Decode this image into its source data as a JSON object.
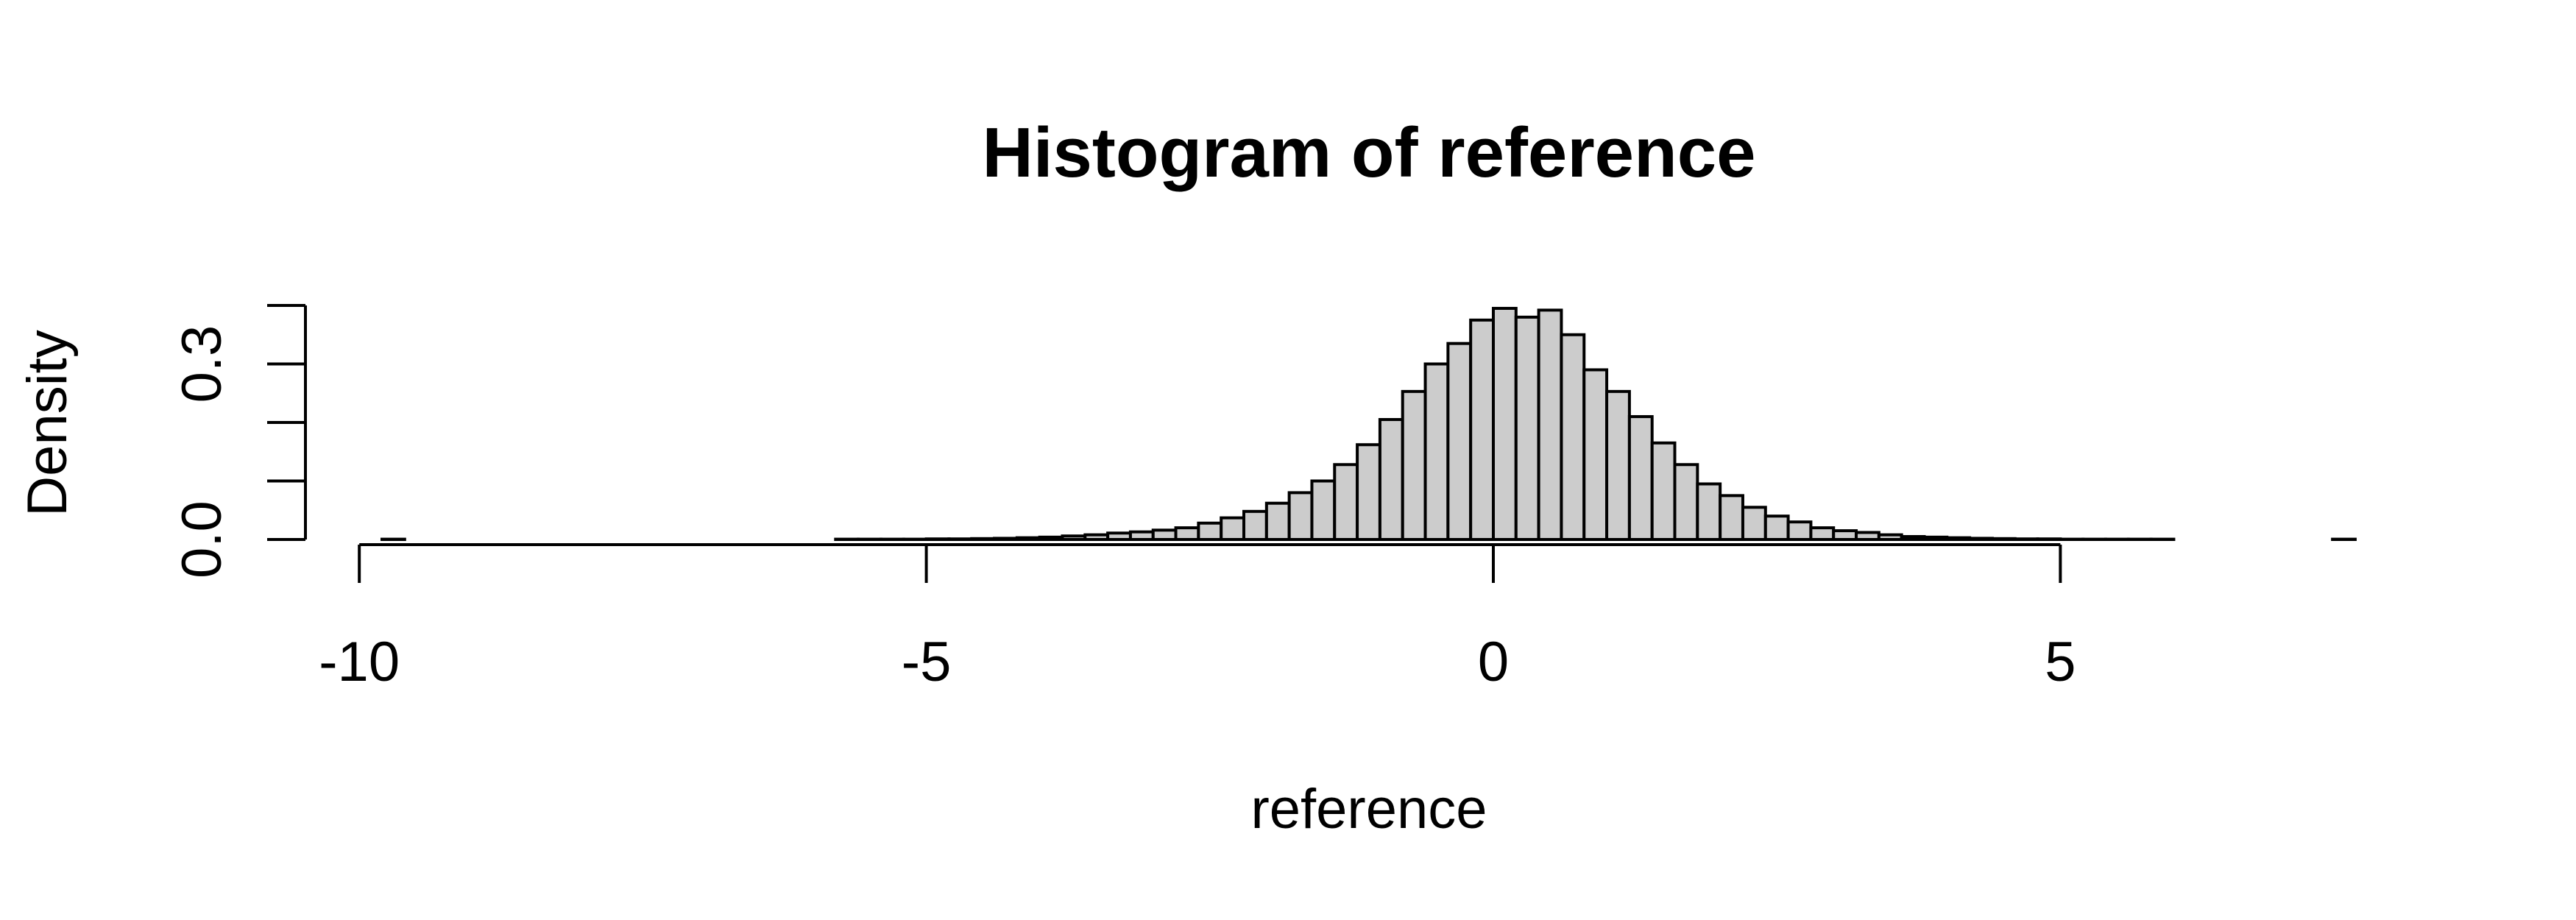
{
  "chart_data": {
    "type": "bar",
    "title": "Histogram of reference",
    "xlabel": "reference",
    "ylabel": "Density",
    "xlim": [
      -9.8,
      7.6
    ],
    "ylim": [
      0,
      0.4
    ],
    "x_ticks": [
      -10,
      -5,
      0,
      5
    ],
    "x_tick_labels": [
      "-10",
      "-5",
      "0",
      "5"
    ],
    "y_ticks": [
      0,
      0.1,
      0.2,
      0.3,
      0.4
    ],
    "y_tick_labels": [
      "0.0",
      "",
      "",
      "0.3",
      ""
    ],
    "bin_width": 0.2,
    "bin_starts": [
      -9.8,
      -9.6,
      -9.4,
      -9.2,
      -9.0,
      -8.8,
      -8.6,
      -8.4,
      -8.2,
      -8.0,
      -7.8,
      -7.6,
      -7.4,
      -7.2,
      -7.0,
      -6.8,
      -6.6,
      -6.4,
      -6.2,
      -6.0,
      -5.8,
      -5.6,
      -5.4,
      -5.2,
      -5.0,
      -4.8,
      -4.6,
      -4.4,
      -4.2,
      -4.0,
      -3.8,
      -3.6,
      -3.4,
      -3.2,
      -3.0,
      -2.8,
      -2.6,
      -2.4,
      -2.2,
      -2.0,
      -1.8,
      -1.6,
      -1.4,
      -1.2,
      -1.0,
      -0.8,
      -0.6,
      -0.4,
      -0.2,
      0.0,
      0.2,
      0.4,
      0.6,
      0.8,
      1.0,
      1.2,
      1.4,
      1.6,
      1.8,
      2.0,
      2.2,
      2.4,
      2.6,
      2.8,
      3.0,
      3.2,
      3.4,
      3.6,
      3.8,
      4.0,
      4.2,
      4.4,
      4.6,
      4.8,
      5.0,
      5.2,
      5.4,
      5.6,
      5.8,
      6.0,
      6.2,
      6.4,
      6.6,
      6.8,
      7.0,
      7.2,
      7.4
    ],
    "values": [
      0.0005,
      0.0,
      0.0,
      0.0,
      0.0,
      0.0,
      0.0,
      0.0,
      0.0,
      0.0,
      0.0,
      0.0,
      0.0,
      0.0,
      0.0,
      0.0,
      0.0,
      0.0,
      0.0,
      0.0,
      0.0005,
      0.0005,
      0.0005,
      0.0005,
      0.001,
      0.001,
      0.0015,
      0.002,
      0.003,
      0.004,
      0.006,
      0.008,
      0.011,
      0.013,
      0.016,
      0.02,
      0.028,
      0.037,
      0.048,
      0.062,
      0.08,
      0.1,
      0.128,
      0.162,
      0.205,
      0.253,
      0.3,
      0.335,
      0.375,
      0.395,
      0.38,
      0.392,
      0.35,
      0.29,
      0.253,
      0.21,
      0.165,
      0.128,
      0.095,
      0.075,
      0.055,
      0.04,
      0.03,
      0.02,
      0.015,
      0.012,
      0.008,
      0.005,
      0.004,
      0.003,
      0.002,
      0.0015,
      0.001,
      0.001,
      0.0005,
      0.0005,
      0.0005,
      0.0005,
      0.0005,
      0.0,
      0.0,
      0.0,
      0.0,
      0.0,
      0.0,
      0.0,
      0.0005
    ]
  }
}
